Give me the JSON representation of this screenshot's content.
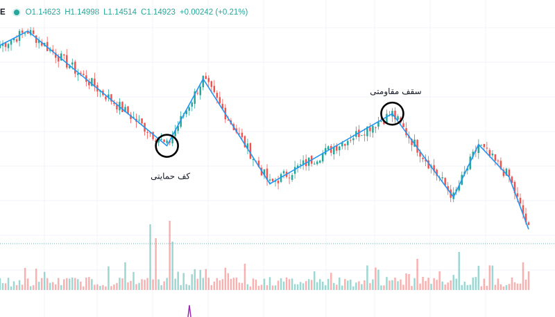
{
  "legend": {
    "symbol_fragment": "E",
    "open": "O1.14623",
    "high": "H1.14998",
    "low": "L1.14514",
    "close": "C1.14923",
    "change": "+0.00242 (+0.21%)"
  },
  "chart_data": {
    "type": "candlestick",
    "price_range": [
      1.108,
      1.1545
    ],
    "last_close": 1.14923,
    "zigzag": [
      {
        "t": 0,
        "price": 1.149
      },
      {
        "t": 10,
        "price": 1.1522
      },
      {
        "t": 60,
        "price": 1.1265
      },
      {
        "t": 73,
        "price": 1.1415
      },
      {
        "t": 97,
        "price": 1.118
      },
      {
        "t": 141,
        "price": 1.1337
      },
      {
        "t": 163,
        "price": 1.115
      },
      {
        "t": 172,
        "price": 1.1268
      },
      {
        "t": 183,
        "price": 1.1195
      },
      {
        "t": 190,
        "price": 1.1078
      }
    ],
    "annotations": [
      {
        "text": "کف حمایتی",
        "t": 60,
        "price": 1.1265,
        "marker": "circle"
      },
      {
        "text": "سقف مقاومتی",
        "t": 141,
        "price": 1.1337,
        "marker": "circle"
      }
    ],
    "colors": {
      "up": "#26a69a",
      "down": "#ef5350",
      "zigzag": "#2196f3",
      "volume_up": "#26a69a",
      "volume_down": "#ef5350"
    }
  }
}
